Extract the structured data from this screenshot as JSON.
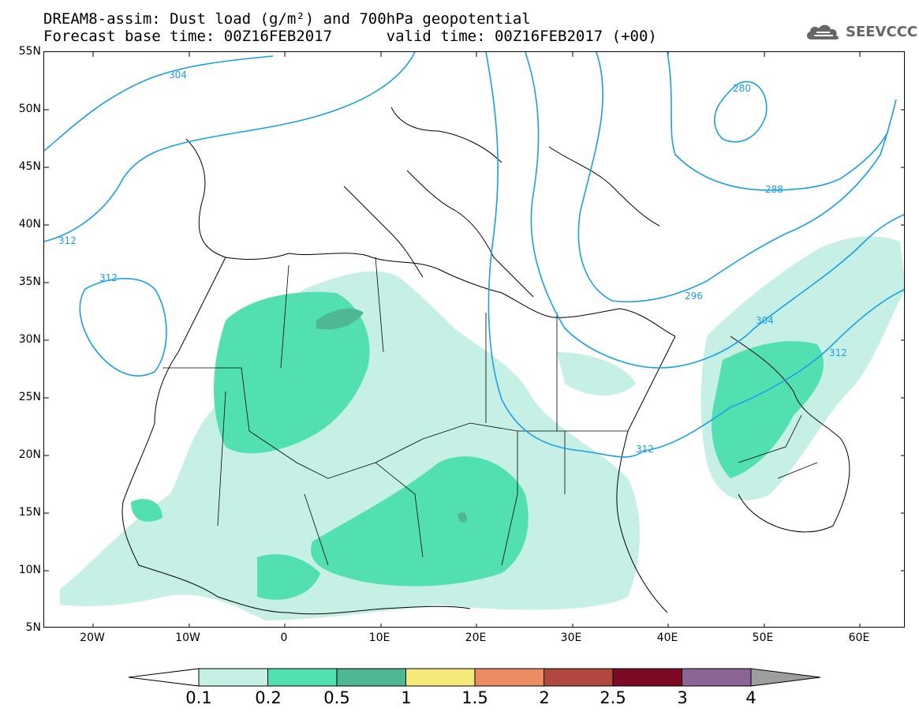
{
  "header": {
    "line1": "DREAM8-assim: Dust load (g/m²) and 700hPa geopotential",
    "line2": "Forecast base time: 00Z16FEB2017      valid time: 00Z16FEB2017 (+00)"
  },
  "logo": {
    "text": "SEEVCCC",
    "icon": "cloud-icon"
  },
  "axes": {
    "lat_ticks": [
      "55N",
      "50N",
      "45N",
      "40N",
      "35N",
      "30N",
      "25N",
      "20N",
      "15N",
      "10N",
      "5N"
    ],
    "lon_ticks": [
      "20W",
      "10W",
      "0",
      "10E",
      "20E",
      "30E",
      "40E",
      "50E",
      "60E"
    ]
  },
  "contours": {
    "labels": [
      "304",
      "312",
      "312",
      "280",
      "288",
      "296",
      "304",
      "312",
      "312"
    ]
  },
  "colorbar": {
    "levels": [
      "0.1",
      "0.2",
      "0.5",
      "1",
      "1.5",
      "2",
      "2.5",
      "3",
      "4"
    ],
    "colors": [
      "#c6f0e6",
      "#52e0b1",
      "#4fb892",
      "#f5e97a",
      "#eb8d61",
      "#b1483d",
      "#7c0a25",
      "#8a6596",
      "#9e9e9e"
    ]
  }
}
